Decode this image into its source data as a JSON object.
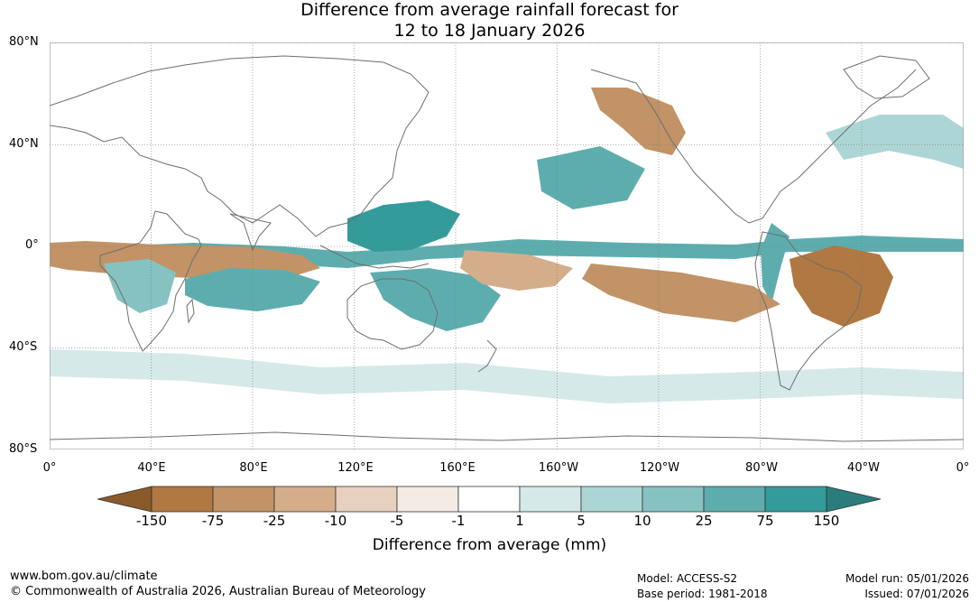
{
  "title": {
    "line1": "Difference from average rainfall forecast for",
    "line2": "12 to 18 January 2026"
  },
  "axes": {
    "lat_labels": [
      "80°N",
      "40°N",
      "0°",
      "40°S",
      "80°S"
    ],
    "lon_labels": [
      "0°",
      "40°E",
      "80°E",
      "120°E",
      "160°E",
      "160°W",
      "120°W",
      "80°W",
      "40°W",
      "0°"
    ]
  },
  "colorbar": {
    "title": "Difference from average (mm)",
    "tick_labels": [
      "-150",
      "-75",
      "-25",
      "-10",
      "-5",
      "-1",
      "1",
      "5",
      "10",
      "25",
      "75",
      "150"
    ],
    "colors": [
      "#8a5a2b",
      "#b07842",
      "#c19366",
      "#d4ae8a",
      "#e6d1be",
      "#f4ebe4",
      "#ffffff",
      "#d5e9e8",
      "#acd6d5",
      "#86c2c2",
      "#5eadae",
      "#339b9a",
      "#2b7d7c"
    ]
  },
  "footer": {
    "website": "www.bom.gov.au/climate",
    "copyright": "© Commonwealth of Australia 2026, Australian Bureau of Meteorology",
    "model": "Model: ACCESS-S2",
    "base_period": "Base period: 1981-2018",
    "model_run": "Model run: 05/01/2026",
    "issued": "Issued: 07/01/2026"
  },
  "map_regions": [
    {
      "name": "equatorial-pacific-wet",
      "level": 10
    },
    {
      "name": "maritime-continent-wet",
      "level": 11
    },
    {
      "name": "indian-ocean-dry",
      "level": 2
    },
    {
      "name": "south-indian-wet",
      "level": 10
    },
    {
      "name": "australia-wet",
      "level": 10
    },
    {
      "name": "brazil-dry",
      "level": 1
    },
    {
      "name": "south-america-wet",
      "level": 10
    },
    {
      "name": "north-pacific-wet",
      "level": 10
    },
    {
      "name": "alaska-dry",
      "level": 2
    },
    {
      "name": "south-pacific-dry",
      "level": 2
    },
    {
      "name": "east-pacific-dry",
      "level": 3
    },
    {
      "name": "southern-ocean-wet",
      "level": 7
    },
    {
      "name": "north-atlantic-wet",
      "level": 8
    },
    {
      "name": "southern-africa-wet",
      "level": 9
    }
  ]
}
